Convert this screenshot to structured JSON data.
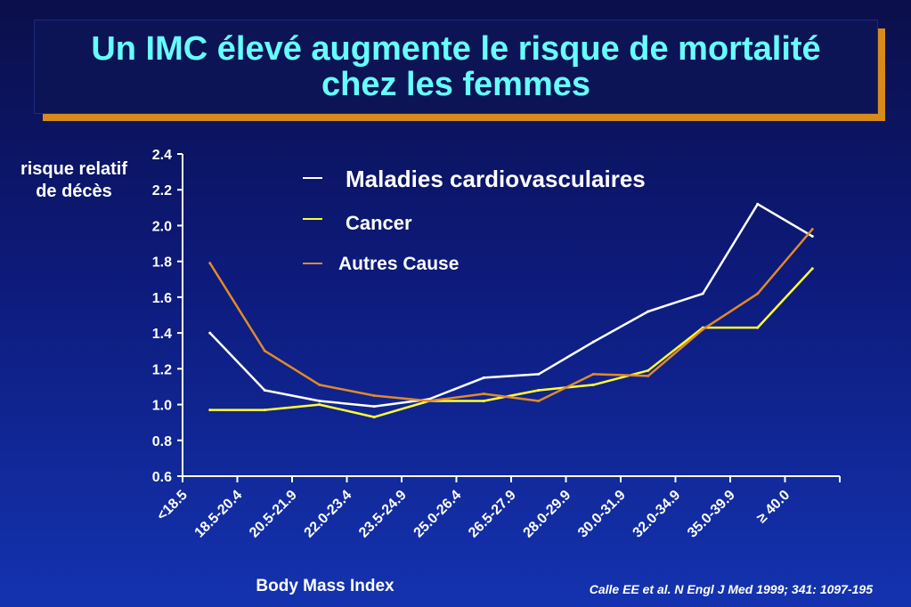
{
  "slide": {
    "title": "Un IMC élevé augmente le risque de mortalité chez les femmes",
    "citation": "Calle EE et al. N Engl J Med 1999; 341: 1097-195"
  },
  "colors": {
    "background": "#0d1a7a",
    "title_text": "#66ffff",
    "title_accent": "#d98a1a",
    "cardio": "#ffffff",
    "cancer": "#ffff33",
    "other": "#e08a2a"
  },
  "chart_data": {
    "type": "line",
    "title": "",
    "xlabel": "Body Mass Index",
    "ylabel": "risque relatif de décès",
    "ylim": [
      0.6,
      2.4
    ],
    "yticks": [
      "0.6",
      "0.8",
      "1.0",
      "1.2",
      "1.4",
      "1.6",
      "1.8",
      "2.0",
      "2.2",
      "2.4"
    ],
    "categories": [
      "<18.5",
      "18.5-20.4",
      "20.5-21.9",
      "22.0-23.4",
      "23.5-24.9",
      "25.0-26.4",
      "26.5-27.9",
      "28.0-29.9",
      "30.0-31.9",
      "32.0-34.9",
      "35.0-39.9",
      "≥ 40.0"
    ],
    "grid": false,
    "legend_position": "top-right",
    "series": [
      {
        "name": "Maladies cardiovasculaires",
        "color": "#ffffff",
        "values": [
          1.4,
          1.08,
          1.02,
          0.99,
          1.03,
          1.15,
          1.17,
          1.35,
          1.52,
          1.62,
          2.12,
          1.94
        ]
      },
      {
        "name": "Cancer",
        "color": "#ffff33",
        "values": [
          0.97,
          0.97,
          1.0,
          0.93,
          1.02,
          1.02,
          1.08,
          1.11,
          1.19,
          1.43,
          1.43,
          1.76
        ]
      },
      {
        "name": "Autres Cause",
        "color": "#e08a2a",
        "values": [
          1.79,
          1.3,
          1.11,
          1.05,
          1.02,
          1.06,
          1.02,
          1.17,
          1.16,
          1.42,
          1.62,
          1.98
        ]
      }
    ]
  }
}
